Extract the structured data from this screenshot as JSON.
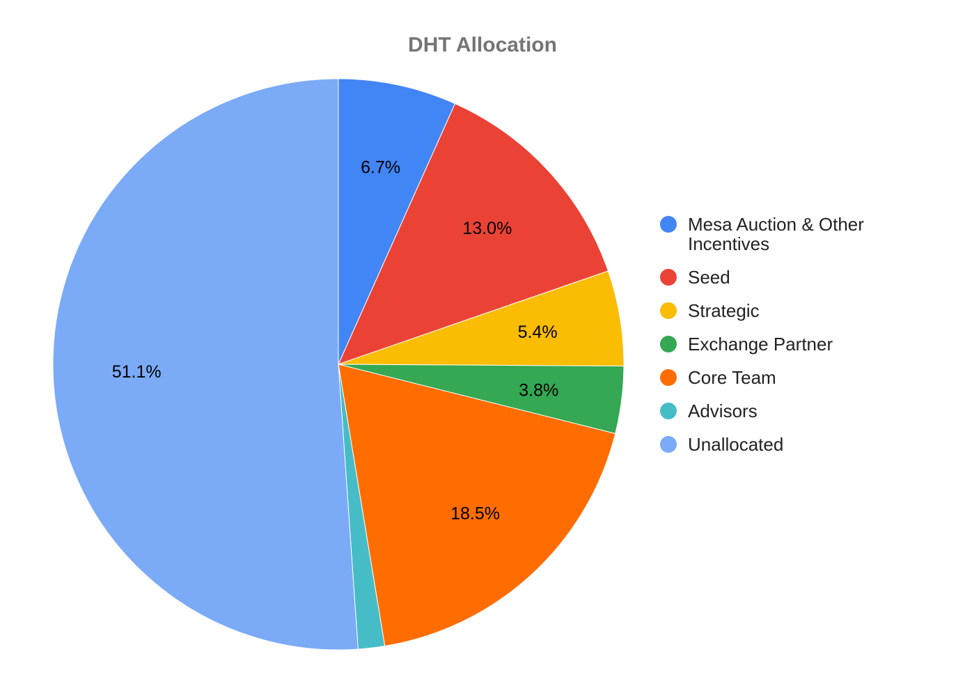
{
  "chart_data": {
    "type": "pie",
    "title": "DHT Allocation",
    "start_angle_deg": 0,
    "direction": "clockwise",
    "legend_position": "right",
    "slices": [
      {
        "label": "Mesa Auction & Other Incentives",
        "value": 6.7,
        "value_label": "6.7%",
        "color": "#4285f4"
      },
      {
        "label": "Seed",
        "value": 13.0,
        "value_label": "13.0%",
        "color": "#ea4335"
      },
      {
        "label": "Strategic",
        "value": 5.4,
        "value_label": "5.4%",
        "color": "#fbbc04"
      },
      {
        "label": "Exchange Partner",
        "value": 3.8,
        "value_label": "3.8%",
        "color": "#34a853"
      },
      {
        "label": "Core Team",
        "value": 18.5,
        "value_label": "18.5%",
        "color": "#ff6d01"
      },
      {
        "label": "Advisors",
        "value": 1.5,
        "value_label": "",
        "color": "#46bdc6"
      },
      {
        "label": "Unallocated",
        "value": 51.1,
        "value_label": "51.1%",
        "color": "#7baaf7"
      }
    ]
  }
}
